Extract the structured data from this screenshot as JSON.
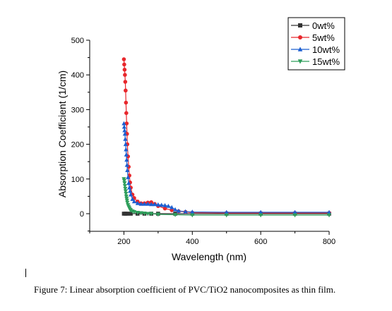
{
  "chart_data": {
    "type": "scatter",
    "xlabel": "Wavelength (nm)",
    "ylabel": "Absorption Coefficient (1/cm)",
    "xlim": [
      100,
      800
    ],
    "ylim": [
      -50,
      500
    ],
    "xticks": [
      "200",
      "400",
      "600",
      "800"
    ],
    "yticks": [
      "0",
      "100",
      "200",
      "300",
      "400",
      "500"
    ],
    "legend_position": "top-right",
    "series": [
      {
        "name": "0wt%",
        "color": "#333333",
        "marker": "square",
        "x": [
          200,
          205,
          210,
          220,
          240,
          260,
          280,
          300,
          350,
          400,
          500,
          600,
          700,
          800
        ],
        "y": [
          0,
          0,
          0,
          0,
          0,
          0,
          0,
          0,
          0,
          0,
          0,
          0,
          0,
          0
        ]
      },
      {
        "name": "5wt%",
        "color": "#e8272c",
        "marker": "circle",
        "x": [
          200,
          201,
          202,
          203,
          204,
          205,
          206,
          207,
          208,
          209,
          210,
          212,
          214,
          216,
          218,
          220,
          225,
          230,
          240,
          250,
          260,
          270,
          280,
          290,
          300,
          320,
          340,
          360,
          380,
          400,
          500,
          600,
          700,
          800
        ],
        "y": [
          445,
          430,
          415,
          400,
          380,
          355,
          320,
          290,
          260,
          230,
          200,
          165,
          135,
          110,
          90,
          75,
          55,
          45,
          35,
          30,
          30,
          32,
          33,
          28,
          22,
          15,
          10,
          7,
          5,
          3,
          2,
          2,
          2,
          2
        ]
      },
      {
        "name": "10wt%",
        "color": "#1c5fd1",
        "marker": "triangle",
        "x": [
          200,
          201,
          202,
          203,
          204,
          205,
          206,
          207,
          208,
          209,
          210,
          212,
          214,
          216,
          218,
          220,
          225,
          230,
          240,
          250,
          260,
          270,
          280,
          290,
          300,
          310,
          320,
          330,
          340,
          350,
          360,
          380,
          400,
          500,
          600,
          700,
          800
        ],
        "y": [
          260,
          250,
          240,
          230,
          215,
          200,
          185,
          170,
          155,
          140,
          125,
          105,
          88,
          75,
          65,
          55,
          42,
          35,
          30,
          28,
          28,
          28,
          27,
          27,
          26,
          25,
          24,
          22,
          18,
          12,
          8,
          6,
          5,
          4,
          4,
          4,
          4
        ]
      },
      {
        "name": "15wt%",
        "color": "#2f9e5b",
        "marker": "triangle-down",
        "x": [
          200,
          201,
          202,
          203,
          204,
          205,
          206,
          207,
          208,
          209,
          210,
          212,
          214,
          216,
          218,
          220,
          225,
          230,
          240,
          250,
          260,
          270,
          280,
          300,
          350,
          400,
          500,
          600,
          700,
          800
        ],
        "y": [
          100,
          95,
          88,
          80,
          72,
          65,
          58,
          50,
          44,
          38,
          32,
          25,
          20,
          16,
          12,
          10,
          7,
          5,
          3,
          2,
          1,
          0,
          0,
          -2,
          -3,
          -4,
          -4,
          -4,
          -4,
          -4
        ]
      }
    ]
  },
  "caption": "Figure 7: Linear absorption coefficient of PVC/TiO2 nanocomposites as thin film."
}
